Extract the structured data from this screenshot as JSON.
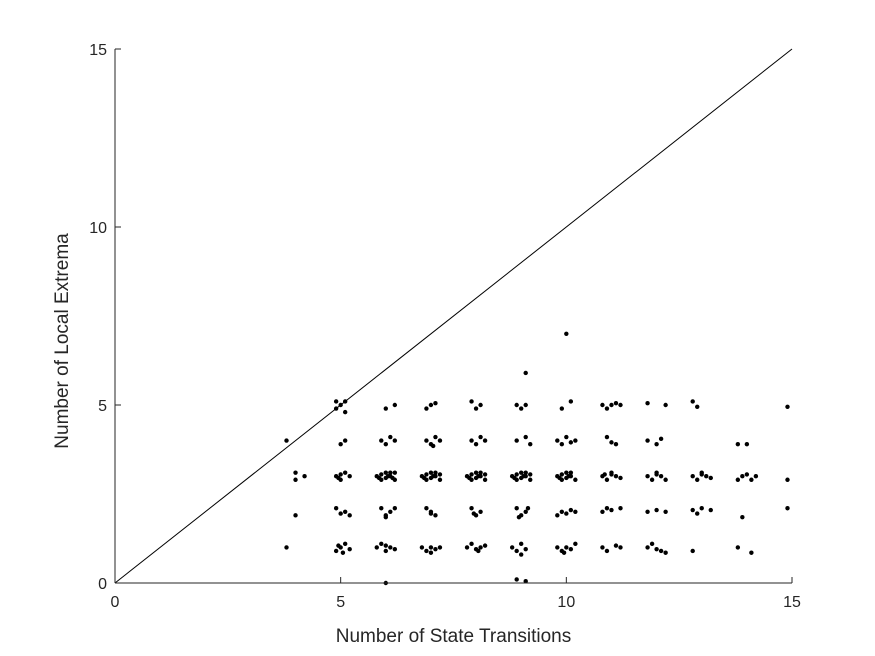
{
  "chart_data": {
    "type": "scatter",
    "xlabel": "Number of State Transitions",
    "ylabel": "Number of Local Extrema",
    "xlim": [
      0,
      15
    ],
    "ylim": [
      0,
      15
    ],
    "xticks": [
      0,
      5,
      10,
      15
    ],
    "yticks": [
      0,
      5,
      10,
      15
    ],
    "grid": false,
    "box": "left-bottom",
    "reference_line": {
      "label": "",
      "points": [
        [
          0,
          0
        ],
        [
          15,
          15
        ]
      ]
    },
    "series": [
      {
        "marker_color": "#000000",
        "points": [
          [
            3.8,
            4.0
          ],
          [
            3.8,
            1.0
          ],
          [
            4.0,
            3.1
          ],
          [
            4.0,
            2.9
          ],
          [
            4.2,
            3.0
          ],
          [
            4.0,
            1.9
          ],
          [
            4.9,
            5.1
          ],
          [
            4.9,
            4.9
          ],
          [
            5.0,
            5.0
          ],
          [
            5.1,
            5.1
          ],
          [
            5.1,
            4.8
          ],
          [
            5.0,
            3.9
          ],
          [
            5.1,
            4.0
          ],
          [
            4.9,
            3.0
          ],
          [
            5.0,
            2.9
          ],
          [
            5.1,
            3.1
          ],
          [
            5.2,
            3.0
          ],
          [
            5.0,
            3.05
          ],
          [
            4.95,
            2.95
          ],
          [
            4.9,
            2.1
          ],
          [
            5.0,
            1.95
          ],
          [
            5.1,
            2.0
          ],
          [
            5.2,
            1.9
          ],
          [
            4.9,
            0.9
          ],
          [
            5.0,
            1.0
          ],
          [
            5.1,
            1.1
          ],
          [
            5.2,
            0.95
          ],
          [
            5.05,
            0.85
          ],
          [
            4.95,
            1.05
          ],
          [
            6.0,
            4.9
          ],
          [
            6.2,
            5.0
          ],
          [
            5.9,
            4.0
          ],
          [
            6.0,
            3.9
          ],
          [
            6.1,
            4.1
          ],
          [
            6.2,
            4.0
          ],
          [
            5.8,
            3.0
          ],
          [
            5.9,
            2.9
          ],
          [
            6.0,
            3.1
          ],
          [
            6.1,
            3.0
          ],
          [
            6.2,
            2.9
          ],
          [
            6.0,
            2.95
          ],
          [
            6.1,
            3.1
          ],
          [
            5.9,
            3.05
          ],
          [
            6.2,
            3.1
          ],
          [
            5.85,
            2.95
          ],
          [
            6.05,
            3.0
          ],
          [
            6.15,
            2.95
          ],
          [
            5.9,
            2.1
          ],
          [
            6.0,
            1.9
          ],
          [
            6.1,
            2.0
          ],
          [
            6.2,
            2.1
          ],
          [
            6.0,
            1.85
          ],
          [
            5.8,
            1.0
          ],
          [
            5.9,
            1.1
          ],
          [
            6.0,
            0.9
          ],
          [
            6.1,
            1.0
          ],
          [
            6.2,
            0.95
          ],
          [
            6.0,
            1.05
          ],
          [
            6.0,
            0.0
          ],
          [
            6.9,
            4.9
          ],
          [
            7.0,
            5.0
          ],
          [
            7.1,
            5.05
          ],
          [
            6.9,
            4.0
          ],
          [
            7.0,
            3.9
          ],
          [
            7.1,
            4.1
          ],
          [
            7.2,
            4.0
          ],
          [
            7.05,
            3.85
          ],
          [
            6.8,
            3.0
          ],
          [
            6.9,
            2.9
          ],
          [
            7.0,
            3.1
          ],
          [
            7.1,
            3.0
          ],
          [
            7.2,
            2.9
          ],
          [
            7.0,
            2.95
          ],
          [
            6.9,
            3.05
          ],
          [
            7.1,
            3.1
          ],
          [
            7.2,
            3.05
          ],
          [
            6.85,
            2.95
          ],
          [
            7.05,
            3.0
          ],
          [
            6.9,
            2.1
          ],
          [
            7.0,
            2.0
          ],
          [
            7.1,
            1.9
          ],
          [
            7.0,
            1.95
          ],
          [
            6.8,
            1.0
          ],
          [
            6.9,
            0.9
          ],
          [
            7.0,
            1.0
          ],
          [
            7.1,
            0.95
          ],
          [
            7.2,
            1.0
          ],
          [
            7.0,
            0.85
          ],
          [
            7.9,
            5.1
          ],
          [
            8.0,
            4.9
          ],
          [
            8.1,
            5.0
          ],
          [
            7.9,
            4.0
          ],
          [
            8.0,
            3.9
          ],
          [
            8.1,
            4.1
          ],
          [
            8.2,
            4.0
          ],
          [
            7.8,
            3.0
          ],
          [
            7.9,
            2.9
          ],
          [
            8.0,
            3.1
          ],
          [
            8.1,
            3.0
          ],
          [
            8.2,
            2.9
          ],
          [
            8.0,
            2.95
          ],
          [
            7.9,
            3.05
          ],
          [
            8.1,
            3.1
          ],
          [
            8.2,
            3.05
          ],
          [
            7.85,
            2.95
          ],
          [
            8.05,
            3.0
          ],
          [
            7.9,
            2.1
          ],
          [
            8.0,
            1.9
          ],
          [
            8.1,
            2.0
          ],
          [
            7.95,
            1.95
          ],
          [
            7.8,
            1.0
          ],
          [
            7.9,
            1.1
          ],
          [
            8.0,
            0.95
          ],
          [
            8.1,
            1.0
          ],
          [
            8.2,
            1.05
          ],
          [
            8.05,
            0.9
          ],
          [
            8.9,
            5.0
          ],
          [
            9.0,
            4.9
          ],
          [
            9.1,
            5.0
          ],
          [
            8.9,
            4.0
          ],
          [
            9.1,
            4.1
          ],
          [
            9.2,
            3.9
          ],
          [
            8.8,
            3.0
          ],
          [
            8.9,
            2.9
          ],
          [
            9.0,
            3.1
          ],
          [
            9.1,
            3.0
          ],
          [
            9.2,
            2.9
          ],
          [
            9.0,
            2.95
          ],
          [
            8.9,
            3.05
          ],
          [
            9.1,
            3.1
          ],
          [
            9.2,
            3.05
          ],
          [
            8.85,
            2.95
          ],
          [
            9.05,
            3.0
          ],
          [
            8.9,
            2.1
          ],
          [
            9.0,
            1.9
          ],
          [
            9.1,
            2.0
          ],
          [
            9.15,
            2.1
          ],
          [
            8.95,
            1.85
          ],
          [
            8.8,
            1.0
          ],
          [
            8.9,
            0.9
          ],
          [
            9.0,
            1.1
          ],
          [
            9.1,
            0.95
          ],
          [
            9.0,
            0.8
          ],
          [
            9.1,
            5.9
          ],
          [
            8.9,
            0.1
          ],
          [
            9.1,
            0.05
          ],
          [
            10.0,
            7.0
          ],
          [
            9.9,
            4.9
          ],
          [
            10.1,
            5.1
          ],
          [
            9.8,
            4.0
          ],
          [
            9.9,
            3.9
          ],
          [
            10.0,
            4.1
          ],
          [
            10.1,
            3.95
          ],
          [
            10.2,
            4.0
          ],
          [
            9.8,
            3.0
          ],
          [
            9.9,
            2.9
          ],
          [
            10.0,
            3.1
          ],
          [
            10.1,
            3.0
          ],
          [
            10.2,
            2.9
          ],
          [
            10.0,
            2.95
          ],
          [
            9.9,
            3.05
          ],
          [
            10.1,
            3.1
          ],
          [
            9.85,
            2.95
          ],
          [
            10.05,
            3.0
          ],
          [
            9.8,
            1.9
          ],
          [
            9.9,
            2.0
          ],
          [
            10.0,
            1.95
          ],
          [
            10.1,
            2.05
          ],
          [
            10.2,
            2.0
          ],
          [
            9.8,
            1.0
          ],
          [
            9.9,
            0.9
          ],
          [
            10.0,
            1.0
          ],
          [
            10.1,
            0.95
          ],
          [
            10.2,
            1.1
          ],
          [
            9.95,
            0.85
          ],
          [
            10.8,
            5.0
          ],
          [
            10.9,
            4.9
          ],
          [
            11.0,
            5.0
          ],
          [
            11.1,
            5.05
          ],
          [
            11.2,
            5.0
          ],
          [
            10.9,
            4.1
          ],
          [
            11.0,
            3.95
          ],
          [
            11.1,
            3.9
          ],
          [
            10.8,
            3.0
          ],
          [
            10.9,
            2.9
          ],
          [
            11.0,
            3.1
          ],
          [
            11.1,
            3.0
          ],
          [
            11.2,
            2.95
          ],
          [
            11.0,
            3.05
          ],
          [
            10.85,
            3.05
          ],
          [
            10.8,
            2.0
          ],
          [
            10.9,
            2.1
          ],
          [
            11.0,
            2.05
          ],
          [
            11.2,
            2.1
          ],
          [
            10.8,
            1.0
          ],
          [
            10.9,
            0.9
          ],
          [
            11.1,
            1.05
          ],
          [
            11.2,
            1.0
          ],
          [
            11.8,
            5.05
          ],
          [
            12.2,
            5.0
          ],
          [
            11.8,
            4.0
          ],
          [
            12.0,
            3.9
          ],
          [
            12.1,
            4.05
          ],
          [
            11.8,
            3.0
          ],
          [
            11.9,
            2.9
          ],
          [
            12.0,
            3.1
          ],
          [
            12.1,
            3.0
          ],
          [
            12.2,
            2.9
          ],
          [
            12.0,
            3.05
          ],
          [
            11.8,
            2.0
          ],
          [
            12.0,
            2.05
          ],
          [
            12.2,
            2.0
          ],
          [
            11.8,
            1.0
          ],
          [
            11.9,
            1.1
          ],
          [
            12.0,
            0.95
          ],
          [
            12.1,
            0.9
          ],
          [
            12.2,
            0.85
          ],
          [
            12.8,
            5.1
          ],
          [
            12.9,
            4.95
          ],
          [
            12.8,
            3.0
          ],
          [
            12.9,
            2.9
          ],
          [
            13.0,
            3.1
          ],
          [
            13.1,
            3.0
          ],
          [
            13.2,
            2.95
          ],
          [
            13.0,
            3.05
          ],
          [
            12.8,
            2.05
          ],
          [
            12.9,
            1.95
          ],
          [
            13.0,
            2.1
          ],
          [
            13.2,
            2.05
          ],
          [
            12.8,
            0.9
          ],
          [
            13.8,
            3.9
          ],
          [
            14.0,
            3.9
          ],
          [
            13.8,
            2.9
          ],
          [
            13.9,
            3.0
          ],
          [
            14.0,
            3.05
          ],
          [
            14.1,
            2.9
          ],
          [
            14.2,
            3.0
          ],
          [
            13.9,
            1.85
          ],
          [
            13.8,
            1.0
          ],
          [
            14.1,
            0.85
          ],
          [
            14.9,
            4.95
          ],
          [
            14.9,
            2.9
          ],
          [
            14.9,
            2.1
          ]
        ]
      }
    ]
  }
}
